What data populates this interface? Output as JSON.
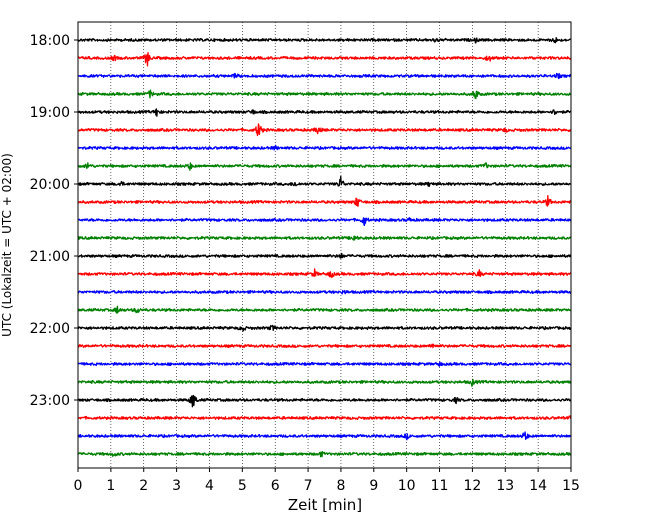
{
  "chart_data": {
    "type": "line",
    "title": "",
    "xlabel": "Zeit  [min]",
    "ylabel": "UTC (Lokalzeit = UTC + 02:00)",
    "xlim": [
      0,
      15
    ],
    "x_ticks": [
      0,
      1,
      2,
      3,
      4,
      5,
      6,
      7,
      8,
      9,
      10,
      11,
      12,
      13,
      14,
      15
    ],
    "x_tick_labels": [
      "0",
      "1",
      "2",
      "3",
      "4",
      "5",
      "6",
      "7",
      "8",
      "9",
      "10",
      "11",
      "12",
      "13",
      "14",
      "15"
    ],
    "y_tick_labels": [
      "18:00",
      "19:00",
      "20:00",
      "21:00",
      "22:00",
      "23:00"
    ],
    "grid": "vertical dotted",
    "legend": "none",
    "trace_interval_min": 15,
    "color_cycle": [
      "#000000",
      "#ff0000",
      "#0000ff",
      "#008000"
    ],
    "traces": [
      {
        "start": "18:00",
        "color": "#000000",
        "events": [
          [
            10.9,
            3
          ],
          [
            12.1,
            2
          ],
          [
            14.5,
            4
          ]
        ]
      },
      {
        "start": "18:15",
        "color": "#ff0000",
        "events": [
          [
            1.1,
            3
          ],
          [
            2.1,
            10
          ],
          [
            12.5,
            5
          ]
        ]
      },
      {
        "start": "18:30",
        "color": "#0000ff",
        "events": [
          [
            4.8,
            3
          ],
          [
            14.6,
            3
          ]
        ]
      },
      {
        "start": "18:45",
        "color": "#008000",
        "events": [
          [
            2.2,
            4
          ],
          [
            12.1,
            7
          ]
        ]
      },
      {
        "start": "19:00",
        "color": "#000000",
        "events": [
          [
            2.4,
            5
          ],
          [
            5.3,
            3
          ],
          [
            14.5,
            3
          ]
        ]
      },
      {
        "start": "19:15",
        "color": "#ff0000",
        "events": [
          [
            5.5,
            12
          ],
          [
            7.3,
            5
          ],
          [
            13.0,
            2
          ]
        ]
      },
      {
        "start": "19:30",
        "color": "#0000ff",
        "events": [
          [
            6.0,
            2
          ]
        ]
      },
      {
        "start": "19:45",
        "color": "#008000",
        "events": [
          [
            0.3,
            4
          ],
          [
            3.4,
            4
          ],
          [
            12.4,
            3
          ]
        ]
      },
      {
        "start": "20:00",
        "color": "#000000",
        "events": [
          [
            1.3,
            3
          ],
          [
            6.6,
            3
          ],
          [
            8.0,
            9
          ],
          [
            10.7,
            3
          ]
        ]
      },
      {
        "start": "20:15",
        "color": "#ff0000",
        "events": [
          [
            8.5,
            7
          ],
          [
            14.3,
            6
          ]
        ]
      },
      {
        "start": "20:30",
        "color": "#0000ff",
        "events": [
          [
            8.7,
            7
          ],
          [
            10.1,
            2
          ]
        ]
      },
      {
        "start": "20:45",
        "color": "#008000",
        "events": [
          [
            8.4,
            4
          ]
        ]
      },
      {
        "start": "21:00",
        "color": "#000000",
        "events": [
          [
            8.0,
            3
          ]
        ]
      },
      {
        "start": "21:15",
        "color": "#ff0000",
        "events": [
          [
            7.2,
            4
          ],
          [
            7.7,
            5
          ],
          [
            12.2,
            4
          ]
        ]
      },
      {
        "start": "21:30",
        "color": "#0000ff",
        "events": [
          [
            8.1,
            2
          ]
        ]
      },
      {
        "start": "21:45",
        "color": "#008000",
        "events": [
          [
            1.2,
            4
          ],
          [
            1.8,
            4
          ]
        ]
      },
      {
        "start": "22:00",
        "color": "#000000",
        "events": [
          [
            5.0,
            4
          ],
          [
            5.9,
            3
          ]
        ]
      },
      {
        "start": "22:15",
        "color": "#ff0000",
        "events": [
          [
            10.8,
            3
          ]
        ]
      },
      {
        "start": "22:30",
        "color": "#0000ff",
        "events": [
          [
            11.0,
            2
          ]
        ]
      },
      {
        "start": "22:45",
        "color": "#008000",
        "events": [
          [
            12.0,
            4
          ]
        ]
      },
      {
        "start": "23:00",
        "color": "#000000",
        "events": [
          [
            3.5,
            12
          ],
          [
            11.5,
            3
          ]
        ]
      },
      {
        "start": "23:15",
        "color": "#ff0000",
        "events": [
          [
            15.0,
            2
          ]
        ]
      },
      {
        "start": "23:30",
        "color": "#0000ff",
        "events": [
          [
            10.0,
            3
          ],
          [
            13.6,
            6
          ]
        ]
      },
      {
        "start": "23:45",
        "color": "#008000",
        "events": [
          [
            1.1,
            3
          ],
          [
            7.4,
            3
          ]
        ]
      }
    ]
  }
}
